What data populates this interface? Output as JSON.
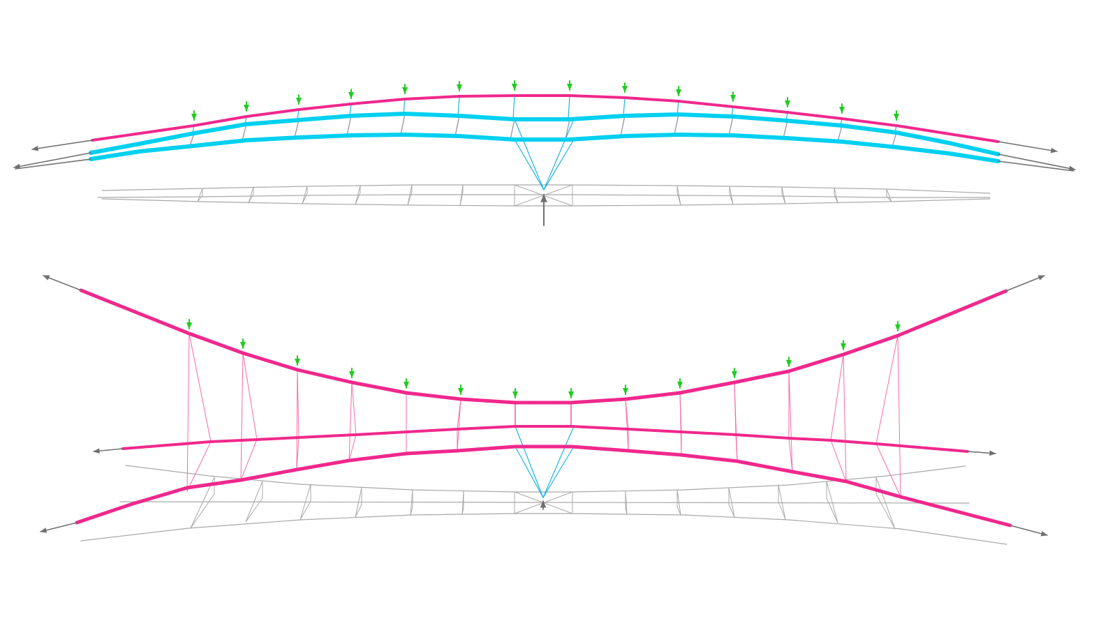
{
  "colors": {
    "background": "#ffffff",
    "tension": "#f0288c",
    "tension_light": "#f46aa8",
    "compression": "#00d0f0",
    "compression_dark": "#1ab4e0",
    "reference": "#a8a8a8",
    "reaction_arrow": "#707070",
    "load_arrow": "#22cc22"
  },
  "legend": []
}
